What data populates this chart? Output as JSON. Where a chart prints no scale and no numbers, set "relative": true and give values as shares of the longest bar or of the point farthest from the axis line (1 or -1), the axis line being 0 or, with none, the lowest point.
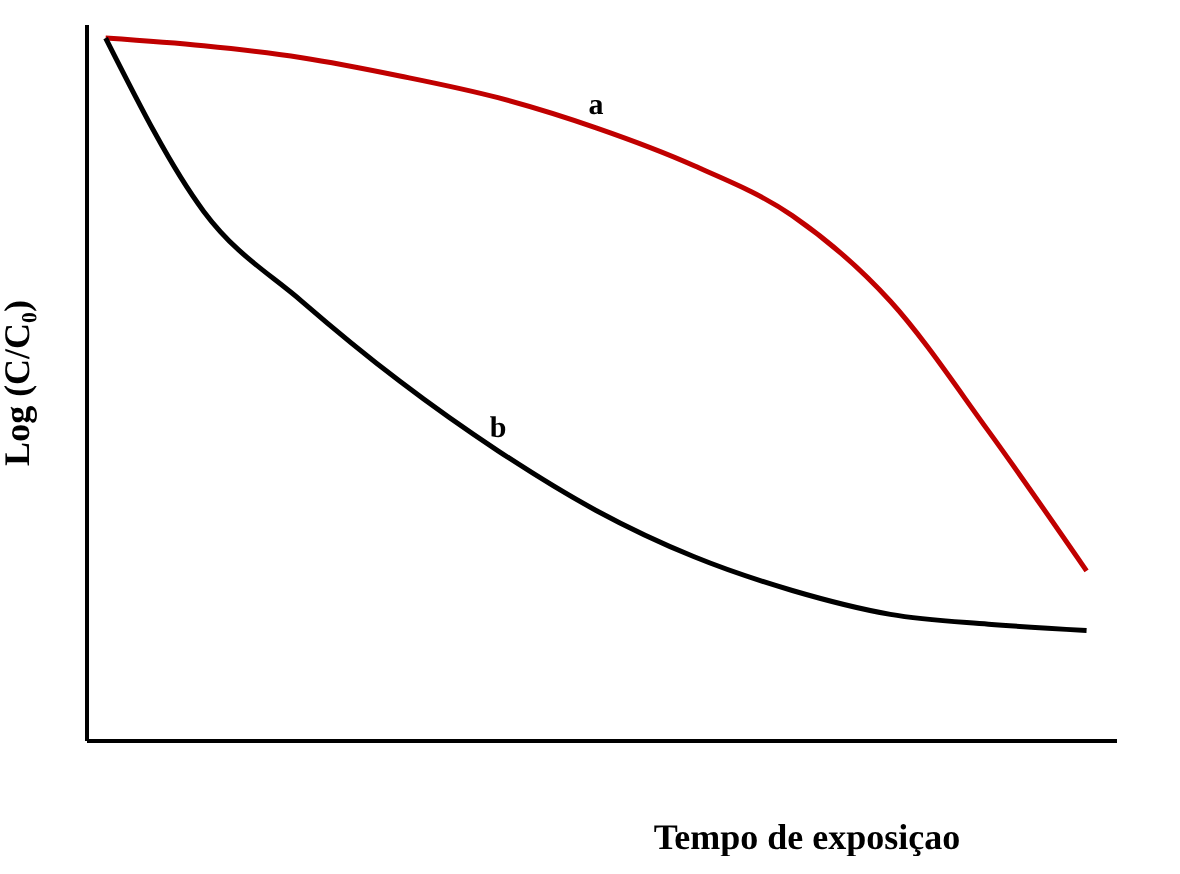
{
  "chart_data": {
    "type": "line",
    "relative": true,
    "xlabel": "Tempo de exposiçao",
    "ylabel": "Log (C/C₀)",
    "categories": [
      null,
      null,
      null,
      null,
      null,
      null,
      null,
      null,
      null,
      null,
      null
    ],
    "series": [
      {
        "name": "a",
        "color": "#c00000",
        "values": [
          1.0,
          0.989,
          0.972,
          0.946,
          0.915,
          0.872,
          0.818,
          0.747,
          0.625,
          0.44,
          0.241
        ]
      },
      {
        "name": "b",
        "color": "#000000",
        "values": [
          1.0,
          0.753,
          0.625,
          0.511,
          0.412,
          0.327,
          0.261,
          0.213,
          0.179,
          0.165,
          0.156
        ]
      }
    ],
    "grid": false,
    "marker": "none",
    "line_style": "solid"
  }
}
